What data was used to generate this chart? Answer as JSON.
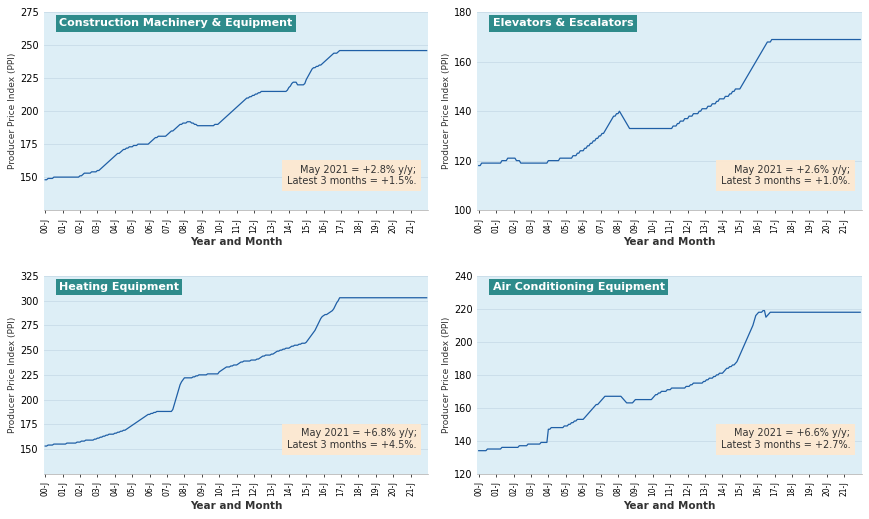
{
  "panels": [
    {
      "title": "Construction Machinery & Equipment",
      "annotation": "May 2021 = +2.8% y/y;\nLatest 3 months = +1.5%.",
      "ylim": [
        125,
        275
      ],
      "yticks": [
        150,
        175,
        200,
        225,
        250,
        275
      ],
      "data": [
        148,
        148,
        149,
        149,
        149,
        149,
        150,
        150,
        150,
        150,
        150,
        150,
        150,
        150,
        150,
        150,
        150,
        150,
        150,
        150,
        150,
        150,
        150,
        150,
        151,
        151,
        152,
        153,
        153,
        153,
        153,
        153,
        154,
        154,
        154,
        154,
        155,
        155,
        156,
        157,
        158,
        159,
        160,
        161,
        162,
        163,
        164,
        165,
        166,
        167,
        168,
        168,
        169,
        170,
        171,
        171,
        172,
        172,
        173,
        173,
        173,
        174,
        174,
        174,
        175,
        175,
        175,
        175,
        175,
        175,
        175,
        175,
        176,
        177,
        178,
        179,
        180,
        180,
        181,
        181,
        181,
        181,
        181,
        181,
        182,
        183,
        184,
        185,
        185,
        186,
        187,
        188,
        189,
        190,
        190,
        191,
        191,
        191,
        192,
        192,
        192,
        191,
        191,
        190,
        190,
        189,
        189,
        189,
        189,
        189,
        189,
        189,
        189,
        189,
        189,
        189,
        189,
        190,
        190,
        190,
        191,
        192,
        193,
        194,
        195,
        196,
        197,
        198,
        199,
        200,
        201,
        202,
        203,
        204,
        205,
        206,
        207,
        208,
        209,
        210,
        210,
        211,
        211,
        212,
        212,
        213,
        213,
        214,
        214,
        215,
        215,
        215,
        215,
        215,
        215,
        215,
        215,
        215,
        215,
        215,
        215,
        215,
        215,
        215,
        215,
        215,
        215,
        216,
        218,
        219,
        221,
        222,
        222,
        222,
        220,
        220,
        220,
        220,
        220,
        221,
        224,
        226,
        228,
        230,
        232,
        233,
        233,
        234,
        234,
        235,
        235,
        236,
        237,
        238,
        239,
        240,
        241,
        242,
        243,
        244,
        244,
        244,
        245,
        246
      ]
    },
    {
      "title": "Elevators & Escalators",
      "annotation": "May 2021 = +2.6% y/y;\nLatest 3 months = +1.0%.",
      "ylim": [
        100,
        180
      ],
      "yticks": [
        100,
        120,
        140,
        160,
        180
      ],
      "data": [
        118,
        118,
        119,
        119,
        119,
        119,
        119,
        119,
        119,
        119,
        119,
        119,
        119,
        119,
        119,
        119,
        120,
        120,
        120,
        120,
        121,
        121,
        121,
        121,
        121,
        121,
        120,
        120,
        120,
        119,
        119,
        119,
        119,
        119,
        119,
        119,
        119,
        119,
        119,
        119,
        119,
        119,
        119,
        119,
        119,
        119,
        119,
        119,
        120,
        120,
        120,
        120,
        120,
        120,
        120,
        120,
        121,
        121,
        121,
        121,
        121,
        121,
        121,
        121,
        121,
        122,
        122,
        122,
        123,
        123,
        124,
        124,
        124,
        125,
        125,
        126,
        126,
        127,
        127,
        128,
        128,
        129,
        129,
        130,
        130,
        131,
        131,
        132,
        133,
        134,
        135,
        136,
        137,
        138,
        138,
        139,
        139,
        140,
        139,
        138,
        137,
        136,
        135,
        134,
        133,
        133,
        133,
        133,
        133,
        133,
        133,
        133,
        133,
        133,
        133,
        133,
        133,
        133,
        133,
        133,
        133,
        133,
        133,
        133,
        133,
        133,
        133,
        133,
        133,
        133,
        133,
        133,
        133,
        133,
        134,
        134,
        134,
        135,
        135,
        136,
        136,
        136,
        137,
        137,
        137,
        138,
        138,
        138,
        139,
        139,
        139,
        139,
        140,
        140,
        141,
        141,
        141,
        141,
        142,
        142,
        142,
        143,
        143,
        143,
        144,
        144,
        145,
        145,
        145,
        145,
        146,
        146,
        146,
        147,
        147,
        148,
        148,
        149,
        149,
        149,
        149,
        150,
        151,
        152,
        153,
        154,
        155,
        156,
        157,
        158,
        159,
        160,
        161,
        162,
        163,
        164,
        165,
        166,
        167,
        168,
        168,
        168,
        169,
        169
      ]
    },
    {
      "title": "Heating Equipment",
      "annotation": "May 2021 = +6.8% y/y;\nLatest 3 months = +4.5%.",
      "ylim": [
        125,
        325
      ],
      "yticks": [
        150,
        175,
        200,
        225,
        250,
        275,
        300,
        325
      ],
      "data": [
        153,
        153,
        154,
        154,
        154,
        154,
        155,
        155,
        155,
        155,
        155,
        155,
        155,
        155,
        155,
        156,
        156,
        156,
        156,
        156,
        156,
        156,
        157,
        157,
        157,
        158,
        158,
        158,
        159,
        159,
        159,
        159,
        159,
        159,
        160,
        160,
        161,
        161,
        162,
        162,
        163,
        163,
        164,
        164,
        165,
        165,
        165,
        165,
        166,
        166,
        167,
        167,
        168,
        168,
        169,
        169,
        170,
        171,
        172,
        173,
        174,
        175,
        176,
        177,
        178,
        179,
        180,
        181,
        182,
        183,
        184,
        185,
        185,
        186,
        186,
        187,
        187,
        188,
        188,
        188,
        188,
        188,
        188,
        188,
        188,
        188,
        188,
        188,
        190,
        195,
        200,
        205,
        210,
        215,
        218,
        220,
        222,
        222,
        222,
        222,
        222,
        222,
        223,
        223,
        224,
        224,
        225,
        225,
        225,
        225,
        225,
        225,
        226,
        226,
        226,
        226,
        226,
        226,
        226,
        226,
        228,
        229,
        230,
        231,
        232,
        233,
        233,
        233,
        234,
        234,
        235,
        235,
        235,
        236,
        237,
        238,
        238,
        239,
        239,
        239,
        239,
        239,
        240,
        240,
        240,
        240,
        241,
        241,
        242,
        243,
        244,
        244,
        245,
        245,
        245,
        245,
        246,
        246,
        247,
        248,
        249,
        249,
        250,
        250,
        251,
        251,
        252,
        252,
        252,
        253,
        254,
        254,
        255,
        255,
        255,
        256,
        256,
        257,
        257,
        257,
        258,
        260,
        262,
        264,
        266,
        268,
        270,
        273,
        276,
        279,
        282,
        284,
        285,
        286,
        286,
        287,
        288,
        289,
        290,
        292,
        295,
        298,
        300,
        303
      ]
    },
    {
      "title": "Air Conditioning Equipment",
      "annotation": "May 2021 = +6.6% y/y;\nLatest 3 months = +2.7%.",
      "ylim": [
        120,
        240
      ],
      "yticks": [
        120,
        140,
        160,
        180,
        200,
        220,
        240
      ],
      "data": [
        134,
        134,
        134,
        134,
        134,
        134,
        135,
        135,
        135,
        135,
        135,
        135,
        135,
        135,
        135,
        135,
        136,
        136,
        136,
        136,
        136,
        136,
        136,
        136,
        136,
        136,
        136,
        136,
        137,
        137,
        137,
        137,
        137,
        137,
        138,
        138,
        138,
        138,
        138,
        138,
        138,
        138,
        138,
        139,
        139,
        139,
        139,
        139,
        147,
        147,
        148,
        148,
        148,
        148,
        148,
        148,
        148,
        148,
        148,
        149,
        149,
        149,
        150,
        150,
        151,
        151,
        152,
        152,
        153,
        153,
        153,
        153,
        153,
        154,
        155,
        156,
        157,
        158,
        159,
        160,
        161,
        162,
        162,
        163,
        164,
        165,
        166,
        167,
        167,
        167,
        167,
        167,
        167,
        167,
        167,
        167,
        167,
        167,
        167,
        166,
        165,
        164,
        163,
        163,
        163,
        163,
        163,
        164,
        165,
        165,
        165,
        165,
        165,
        165,
        165,
        165,
        165,
        165,
        165,
        165,
        166,
        167,
        168,
        168,
        169,
        169,
        170,
        170,
        170,
        170,
        171,
        171,
        171,
        172,
        172,
        172,
        172,
        172,
        172,
        172,
        172,
        172,
        172,
        173,
        173,
        173,
        174,
        174,
        175,
        175,
        175,
        175,
        175,
        175,
        175,
        176,
        176,
        177,
        177,
        178,
        178,
        178,
        179,
        179,
        180,
        180,
        181,
        181,
        181,
        182,
        183,
        184,
        184,
        185,
        185,
        186,
        186,
        187,
        188,
        190,
        192,
        194,
        196,
        198,
        200,
        202,
        204,
        206,
        208,
        210,
        213,
        216,
        217,
        218,
        218,
        218,
        219,
        219,
        215,
        216,
        217,
        218,
        218,
        218
      ]
    }
  ],
  "xtick_labels": [
    "00-J",
    "01-J",
    "02-J",
    "03-J",
    "04-J",
    "05-J",
    "06-J",
    "07-J",
    "08-J",
    "09-J",
    "10-J",
    "11-J",
    "12-J",
    "13-J",
    "14-J",
    "15-J",
    "16-J",
    "17-J",
    "18-J",
    "19-J",
    "20-J",
    "21-J"
  ],
  "xlabel": "Year and Month",
  "ylabel": "Producer Price Index (PPI)",
  "line_color": "#1f5fa6",
  "bg_color": "#ddeef6",
  "title_bg": "#2e8b8b",
  "title_fg": "#ffffff",
  "annot_bg": "#fde8d0",
  "grid_color": "#c8dce8"
}
